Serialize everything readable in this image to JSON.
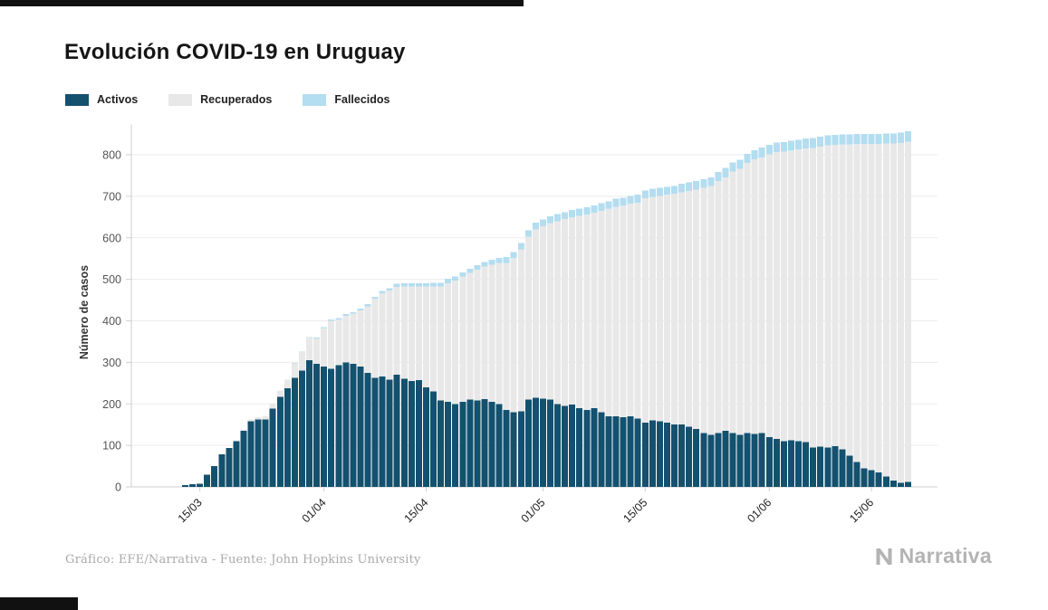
{
  "page": {
    "title": "Evolución COVID-19 en Uruguay"
  },
  "footer": {
    "credit": "Gráfico: EFE/Narrativa - Fuente: John Hopkins University",
    "brand": "Narrativa"
  },
  "chart_data": {
    "type": "bar",
    "stacked": true,
    "title": "Evolución COVID-19 en Uruguay",
    "xlabel": "",
    "ylabel": "Número de casos",
    "ylim": [
      0,
      860
    ],
    "yticks": [
      0,
      100,
      200,
      300,
      400,
      500,
      600,
      700,
      800
    ],
    "xticks": [
      "15/03",
      "01/04",
      "15/04",
      "01/05",
      "15/05",
      "01/06",
      "15/06"
    ],
    "grid": true,
    "legend_position": "top-left",
    "categories": [
      "13/03",
      "14/03",
      "15/03",
      "16/03",
      "17/03",
      "18/03",
      "19/03",
      "20/03",
      "21/03",
      "22/03",
      "23/03",
      "24/03",
      "25/03",
      "26/03",
      "27/03",
      "28/03",
      "29/03",
      "30/03",
      "31/03",
      "01/04",
      "02/04",
      "03/04",
      "04/04",
      "05/04",
      "06/04",
      "07/04",
      "08/04",
      "09/04",
      "10/04",
      "11/04",
      "12/04",
      "13/04",
      "14/04",
      "15/04",
      "16/04",
      "17/04",
      "18/04",
      "19/04",
      "20/04",
      "21/04",
      "22/04",
      "23/04",
      "24/04",
      "25/04",
      "26/04",
      "27/04",
      "28/04",
      "29/04",
      "30/04",
      "01/05",
      "02/05",
      "03/05",
      "04/05",
      "05/05",
      "06/05",
      "07/05",
      "08/05",
      "09/05",
      "10/05",
      "11/05",
      "12/05",
      "13/05",
      "14/05",
      "15/05",
      "16/05",
      "17/05",
      "18/05",
      "19/05",
      "20/05",
      "21/05",
      "22/05",
      "23/05",
      "24/05",
      "25/05",
      "26/05",
      "27/05",
      "28/05",
      "29/05",
      "30/05",
      "31/05",
      "01/06",
      "02/06",
      "03/06",
      "04/06",
      "05/06",
      "06/06",
      "07/06",
      "08/06",
      "09/06",
      "10/06",
      "11/06",
      "12/06",
      "13/06",
      "14/06",
      "15/06",
      "16/06",
      "17/06",
      "18/06",
      "19/06",
      "20/06"
    ],
    "series": [
      {
        "name": "Activos",
        "color": "#13516f",
        "values": [
          4,
          6,
          8,
          29,
          50,
          79,
          94,
          110,
          135,
          158,
          162,
          162,
          189,
          217,
          238,
          263,
          280,
          305,
          296,
          290,
          285,
          293,
          300,
          297,
          290,
          275,
          263,
          266,
          258,
          270,
          261,
          255,
          257,
          240,
          230,
          208,
          205,
          200,
          205,
          210,
          208,
          211,
          205,
          200,
          185,
          180,
          182,
          210,
          215,
          213,
          210,
          200,
          195,
          198,
          190,
          185,
          190,
          180,
          170,
          170,
          168,
          170,
          165,
          155,
          160,
          158,
          155,
          150,
          150,
          145,
          140,
          130,
          125,
          130,
          135,
          130,
          125,
          130,
          128,
          130,
          120,
          115,
          110,
          112,
          110,
          108,
          95,
          97,
          95,
          98,
          90,
          75,
          60,
          45,
          40,
          35,
          25,
          15,
          10,
          12
        ]
      },
      {
        "name": "Recuperados",
        "color": "#e8e8e8",
        "values": [
          0,
          0,
          0,
          0,
          0,
          0,
          0,
          2,
          3,
          4,
          6,
          8,
          10,
          15,
          20,
          35,
          45,
          55,
          62,
          93,
          115,
          110,
          112,
          120,
          135,
          160,
          190,
          200,
          215,
          212,
          222,
          228,
          226,
          243,
          253,
          275,
          286,
          297,
          302,
          305,
          315,
          320,
          330,
          340,
          355,
          372,
          390,
          393,
          405,
          415,
          425,
          440,
          450,
          452,
          463,
          471,
          470,
          485,
          500,
          505,
          510,
          512,
          520,
          540,
          539,
          543,
          549,
          556,
          560,
          568,
          576,
          590,
          600,
          607,
          611,
          630,
          641,
          650,
          661,
          664,
          681,
          691,
          698,
          699,
          703,
          707,
          721,
          723,
          728,
          726,
          735,
          750,
          766,
          781,
          786,
          791,
          802,
          812,
          818,
          820
        ]
      },
      {
        "name": "Fallecidos",
        "color": "#b3ddf0",
        "values": [
          0,
          0,
          0,
          0,
          0,
          0,
          0,
          0,
          0,
          0,
          0,
          0,
          0,
          0,
          0,
          1,
          1,
          1,
          2,
          2,
          3,
          3,
          4,
          4,
          4,
          5,
          5,
          6,
          6,
          7,
          7,
          7,
          8,
          8,
          9,
          9,
          10,
          10,
          10,
          10,
          11,
          11,
          12,
          12,
          14,
          14,
          15,
          15,
          16,
          16,
          17,
          17,
          17,
          17,
          17,
          18,
          18,
          18,
          18,
          19,
          19,
          19,
          19,
          19,
          19,
          19,
          19,
          19,
          20,
          21,
          21,
          21,
          21,
          22,
          22,
          22,
          22,
          22,
          22,
          23,
          23,
          23,
          23,
          23,
          23,
          24,
          24,
          24,
          24,
          24,
          24,
          24,
          24,
          24,
          24,
          24,
          24,
          24,
          25,
          25
        ]
      }
    ]
  }
}
